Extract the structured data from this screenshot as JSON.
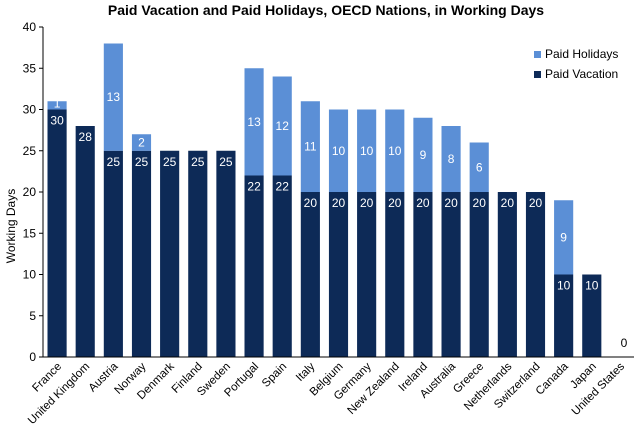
{
  "chart_data": {
    "type": "bar",
    "stacked": true,
    "title": "Paid Vacation and Paid Holidays, OECD Nations, in Working Days",
    "ylabel": "Working Days",
    "xlabel": "",
    "ylim": [
      0,
      40
    ],
    "yticks": [
      0,
      5,
      10,
      15,
      20,
      25,
      30,
      35,
      40
    ],
    "grid": false,
    "legend": "top-right",
    "categories": [
      "France",
      "United Kingdom",
      "Austria",
      "Norway",
      "Denmark",
      "Finland",
      "Sweden",
      "Portugal",
      "Spain",
      "Italy",
      "Belgium",
      "Germany",
      "New Zealand",
      "Ireland",
      "Australia",
      "Greece",
      "Netherlands",
      "Switzerland",
      "Canada",
      "Japan",
      "United States"
    ],
    "series": [
      {
        "name": "Paid Vacation",
        "color": "#0d2a57",
        "values": [
          30,
          28,
          25,
          25,
          25,
          25,
          25,
          22,
          22,
          20,
          20,
          20,
          20,
          20,
          20,
          20,
          20,
          20,
          10,
          10,
          0
        ]
      },
      {
        "name": "Paid Holidays",
        "color": "#5b8fd6",
        "values": [
          1,
          0,
          13,
          2,
          0,
          0,
          0,
          13,
          12,
          11,
          10,
          10,
          10,
          9,
          8,
          6,
          0,
          0,
          9,
          0,
          0
        ]
      }
    ],
    "legend_order": [
      "Paid Holidays",
      "Paid Vacation"
    ]
  }
}
